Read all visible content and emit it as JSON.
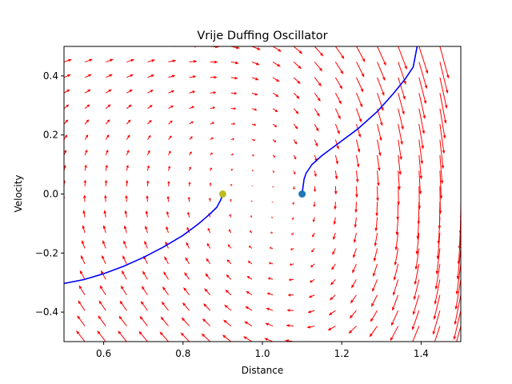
{
  "chart_data": {
    "type": "quiver",
    "title": "Vrije Duffing Oscillator",
    "xlabel": "Distance",
    "ylabel": "Velocity",
    "xlim": [
      0.5,
      1.5
    ],
    "ylim": [
      -0.5,
      0.5
    ],
    "xticks": [
      0.6,
      0.8,
      1.0,
      1.2,
      1.4
    ],
    "xtick_labels": [
      "0.6",
      "0.8",
      "1.0",
      "1.2",
      "1.4"
    ],
    "yticks": [
      -0.4,
      -0.2,
      0.0,
      0.2,
      0.4
    ],
    "ytick_labels": [
      "−0.4",
      "−0.2",
      "0.0",
      "0.2",
      "0.4"
    ],
    "grid": false,
    "vector_field": {
      "color": "#ff0000",
      "x_range": [
        0.5,
        1.5
      ],
      "y_range": [
        -0.5,
        0.5
      ],
      "grid_size": 20,
      "equation": "dx = y, dv = -0.5*y + x - x^3"
    },
    "series": [
      {
        "color": "#0000ff",
        "x": [
          0.5,
          0.55,
          0.6,
          0.65,
          0.7,
          0.75,
          0.8,
          0.84,
          0.87,
          0.885,
          0.895,
          0.9
        ],
        "y": [
          -0.303,
          -0.29,
          -0.27,
          -0.245,
          -0.215,
          -0.18,
          -0.14,
          -0.1,
          -0.065,
          -0.045,
          -0.02,
          0.0
        ]
      },
      {
        "color": "#0000ff",
        "x": [
          1.1,
          1.105,
          1.11,
          1.125,
          1.15,
          1.19,
          1.24,
          1.29,
          1.33,
          1.36,
          1.38,
          1.39
        ],
        "y": [
          0.0,
          0.05,
          0.07,
          0.1,
          0.13,
          0.17,
          0.22,
          0.28,
          0.34,
          0.39,
          0.43,
          0.5
        ]
      }
    ],
    "points": [
      {
        "x": 0.9,
        "y": 0.0,
        "color": "#bcbd22"
      },
      {
        "x": 1.1,
        "y": 0.0,
        "color": "#1f77b4"
      }
    ]
  }
}
